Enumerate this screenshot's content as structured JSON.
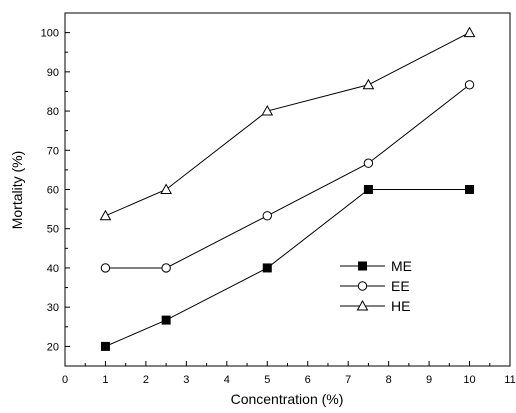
{
  "chart_data": {
    "type": "line",
    "title": "",
    "xlabel": "Concentration (%)",
    "ylabel": "Mortality (%)",
    "xlim": [
      0,
      11
    ],
    "ylim": [
      15,
      105
    ],
    "xticks": [
      0,
      1,
      2,
      3,
      4,
      5,
      6,
      7,
      8,
      9,
      10,
      11
    ],
    "yticks": [
      20,
      30,
      40,
      50,
      60,
      70,
      80,
      90,
      100
    ],
    "grid": false,
    "legend_position": "lower-right",
    "series": [
      {
        "name": "ME",
        "marker": "filled-square",
        "x": [
          1,
          2.5,
          5,
          7.5,
          10
        ],
        "y": [
          20,
          26.7,
          40,
          60,
          60
        ]
      },
      {
        "name": "EE",
        "marker": "open-circle",
        "x": [
          1,
          2.5,
          5,
          7.5,
          10
        ],
        "y": [
          40,
          40,
          53.3,
          66.7,
          86.7
        ]
      },
      {
        "name": "HE",
        "marker": "open-triangle",
        "x": [
          1,
          2.5,
          5,
          7.5,
          10
        ],
        "y": [
          53.3,
          60,
          80,
          86.7,
          100
        ]
      }
    ]
  }
}
